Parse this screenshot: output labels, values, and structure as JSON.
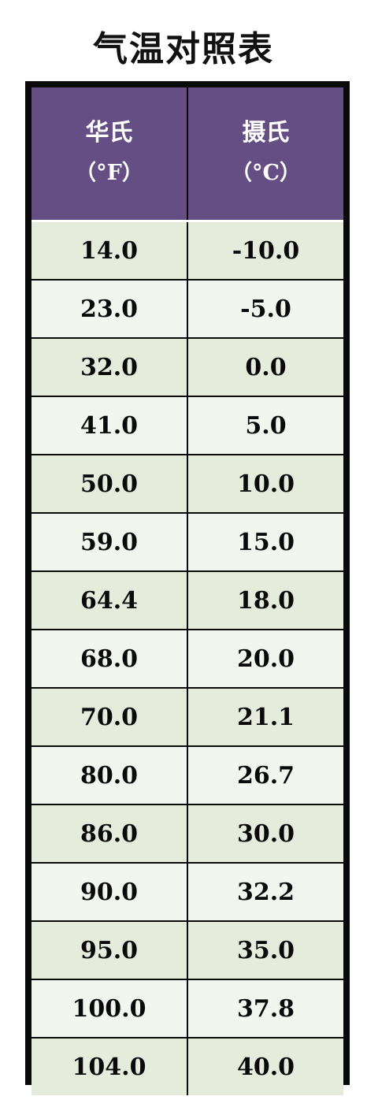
{
  "title": "气温对照表",
  "table": {
    "headers": [
      {
        "name": "华氏",
        "unit": "（°F）"
      },
      {
        "name": "摄氏",
        "unit": "（°C）"
      }
    ],
    "rows": [
      [
        "14.0",
        "-10.0"
      ],
      [
        "23.0",
        "-5.0"
      ],
      [
        "32.0",
        "0.0"
      ],
      [
        "41.0",
        "5.0"
      ],
      [
        "50.0",
        "10.0"
      ],
      [
        "59.0",
        "15.0"
      ],
      [
        "64.4",
        "18.0"
      ],
      [
        "68.0",
        "20.0"
      ],
      [
        "70.0",
        "21.1"
      ],
      [
        "80.0",
        "26.7"
      ],
      [
        "86.0",
        "30.0"
      ],
      [
        "90.0",
        "32.2"
      ],
      [
        "95.0",
        "35.0"
      ],
      [
        "100.0",
        "37.8"
      ],
      [
        "104.0",
        "40.0"
      ]
    ]
  },
  "colors": {
    "header_bg": "#654e84",
    "row_odd_bg": "#e6ecdc",
    "row_even_bg": "#f3f6ee",
    "border": "#0a0a0a"
  }
}
